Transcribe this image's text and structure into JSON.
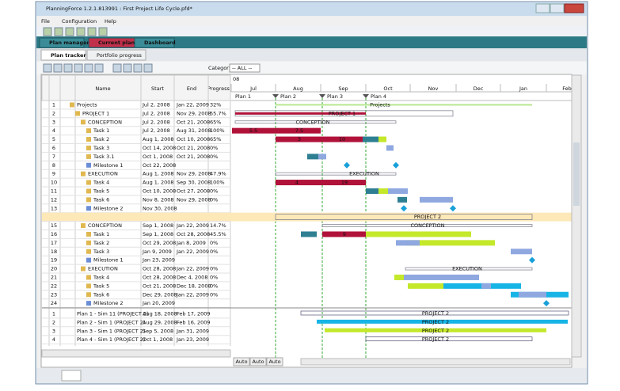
{
  "window": {
    "title": "PlanningForce 1.2.1.813991 : First Project Life Cycle.pfd*"
  },
  "menu": [
    "File",
    "Configuration",
    "Help"
  ],
  "tabs": [
    "Plan manager",
    "Current plan",
    "Dashboard"
  ],
  "subtabs": [
    "Plan tracker",
    "Portfolio progress"
  ],
  "toolbar": {
    "category_label": "Category :",
    "category_value": "-- ALL --"
  },
  "table": {
    "headers": [
      "Name",
      "Start",
      "End",
      "Progress"
    ],
    "rows": [
      {
        "num": 1,
        "name": "Projects",
        "start": "Jul 2, 2008",
        "end": "Jan 22, 2009",
        "progress": "32%"
      },
      {
        "num": 2,
        "name": "PROJECT 1",
        "start": "Jul 2, 2008",
        "end": "Nov 29, 2008",
        "progress": "55.7%"
      },
      {
        "num": 3,
        "name": "CONCEPTION",
        "start": "Jul 2, 2008",
        "end": "Oct 21, 2008",
        "progress": "65%"
      },
      {
        "num": 4,
        "name": "Task 1",
        "start": "Jul 2, 2008",
        "end": "Aug 31, 2008",
        "progress": "100%"
      },
      {
        "num": 5,
        "name": "Task 2",
        "start": "Aug 1, 2008",
        "end": "Oct 10, 2008",
        "progress": "65%"
      },
      {
        "num": 6,
        "name": "Task 3",
        "start": "Oct 14, 2008",
        "end": "Oct 21, 2008",
        "progress": "0%"
      },
      {
        "num": 7,
        "name": "Task 3.1",
        "start": "Oct 1, 2008",
        "end": "Oct 21, 2008",
        "progress": "0%"
      },
      {
        "num": 8,
        "name": "Milestone 1",
        "start": "Oct 22, 2008"
      },
      {
        "num": 9,
        "name": "EXECUTION",
        "start": "Aug 1, 2008",
        "end": "Nov 29, 2008",
        "progress": "47.9%"
      },
      {
        "num": 10,
        "name": "Task 4",
        "start": "Aug 1, 2008",
        "end": "Sep 30, 2008",
        "progress": "100%"
      },
      {
        "num": 11,
        "name": "Task 5",
        "start": "Oct 10, 2008",
        "end": "Oct 27, 2008",
        "progress": "0%"
      },
      {
        "num": 12,
        "name": "Task 6",
        "start": "Nov 8, 2008",
        "end": "Nov 29, 2008",
        "progress": "0%"
      },
      {
        "num": 13,
        "name": "Milestone 2",
        "start": "Nov 30, 2008"
      },
      {},
      {
        "num": 15,
        "name": "CONCEPTION",
        "start": "Sep 1, 2008",
        "end": "Jan 22, 2009",
        "progress": "14.7%"
      },
      {
        "num": 16,
        "name": "Task 1",
        "start": "Sep 1, 2008",
        "end": "Oct 28, 2008",
        "progress": "45.5%"
      },
      {
        "num": 17,
        "name": "Task 2",
        "start": "Oct 29, 2008",
        "end": "Jan 8, 2009",
        "progress": "0%"
      },
      {
        "num": 18,
        "name": "Task 3",
        "start": "Jan 9, 2009",
        "end": "Jan 22, 2009",
        "progress": "0%"
      },
      {
        "num": 19,
        "name": "Milestone 1",
        "start": "Jan 23, 2009"
      },
      {
        "num": 20,
        "name": "EXECUTION",
        "start": "Oct 28, 2008",
        "end": "Jan 22, 2009",
        "progress": "0%"
      },
      {
        "num": 21,
        "name": "Task 4",
        "start": "Oct 28, 2008",
        "end": "Dec 4, 2008",
        "progress": "0%"
      },
      {
        "num": 22,
        "name": "Task 5",
        "start": "Oct 21, 2008",
        "end": "Dec 18, 2008",
        "progress": "0%"
      },
      {
        "num": 23,
        "name": "Task 6",
        "start": "Dec 29, 2008",
        "end": "Jan 22, 2009",
        "progress": "0%"
      },
      {
        "num": 24,
        "name": "Milestone 2",
        "start": "Jan 20, 2009"
      }
    ]
  },
  "plans_table": {
    "rows": [
      {
        "num": 1,
        "name": "Plan 1 - Sim 11 (PROJECT 2)",
        "start": "Aug 18, 2008",
        "end": "Feb 17, 2009"
      },
      {
        "num": 2,
        "name": "Plan 2 - Sim 1 (PROJECT 2)",
        "start": "Aug 29, 2008",
        "end": "Feb 16, 2009"
      },
      {
        "num": 3,
        "name": "Plan 3 - Sim 1 (PROJECT 2)",
        "start": "Sep 5, 2008",
        "end": "Jan 31, 2009"
      },
      {
        "num": 4,
        "name": "Plan 4 - Sim 1 (PROJECT 2)",
        "start": "Oct 1, 2008",
        "end": "Jan 23, 2009"
      }
    ]
  },
  "gantt": {
    "year": "08",
    "months": [
      "Jul",
      "Aug",
      "Sep",
      "Oct",
      "Nov",
      "Dec",
      "Jan",
      "Feb"
    ],
    "plans": [
      "Plan 1",
      "Plan 2",
      "Plan 3",
      "Plan 4"
    ],
    "bar_labels": [
      "Projects",
      "PROJECT 1",
      "CONCEPTION",
      "5.5",
      "7.5",
      "3",
      "10",
      "EXECUTION",
      "4",
      "19",
      "PROJECT 2",
      "CONCEPTION",
      "9",
      "EXECUTION"
    ],
    "plan_bar_labels": [
      "PROJECT 2",
      "PROJECT 2",
      "PROJECT 2",
      "PROJECT 2"
    ],
    "buttons": [
      "Auto",
      "Auto",
      "Auto"
    ]
  }
}
